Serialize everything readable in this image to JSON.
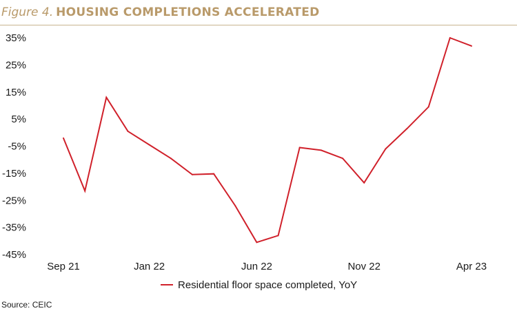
{
  "header": {
    "figure_label": "Figure 4.",
    "title": "HOUSING COMPLETIONS ACCELERATED"
  },
  "source": "Source: CEIC",
  "colors": {
    "series": "#d0202a",
    "title": "#b99a6a",
    "rule": "#c8b48f"
  },
  "chart_data": {
    "type": "line",
    "title": "HOUSING COMPLETIONS ACCELERATED",
    "xlabel": "",
    "ylabel": "",
    "ylim": [
      -45,
      35
    ],
    "y_ticks": [
      "35%",
      "25%",
      "15%",
      "5%",
      "-5%",
      "-15%",
      "-25%",
      "-35%",
      "-45%"
    ],
    "x_ticks": [
      {
        "label": "Sep 21",
        "index": 0
      },
      {
        "label": "Jan 22",
        "index": 4
      },
      {
        "label": "Jun 22",
        "index": 9
      },
      {
        "label": "Nov 22",
        "index": 14
      },
      {
        "label": "Apr 23",
        "index": 19
      }
    ],
    "x": [
      "Sep 21",
      "Oct 21",
      "Nov 21",
      "Dec 21",
      "Jan 22",
      "Feb 22",
      "Mar 22",
      "Apr 22",
      "May 22",
      "Jun 22",
      "Jul 22",
      "Aug 22",
      "Sep 22",
      "Oct 22",
      "Nov 22",
      "Dec 22",
      "Jan 23",
      "Feb 23",
      "Mar 23",
      "Apr 23"
    ],
    "grid": false,
    "legend_position": "bottom-center",
    "series": [
      {
        "name": "Residential floor space completed, YoY",
        "color": "#d0202a",
        "values": [
          -2,
          -21.5,
          13,
          0.5,
          -4.5,
          -9.5,
          -15.5,
          -15.2,
          -27,
          -40.5,
          -38,
          -5.5,
          -6.5,
          -9.5,
          -18.5,
          -6,
          1.5,
          9.5,
          35,
          32
        ]
      }
    ]
  }
}
